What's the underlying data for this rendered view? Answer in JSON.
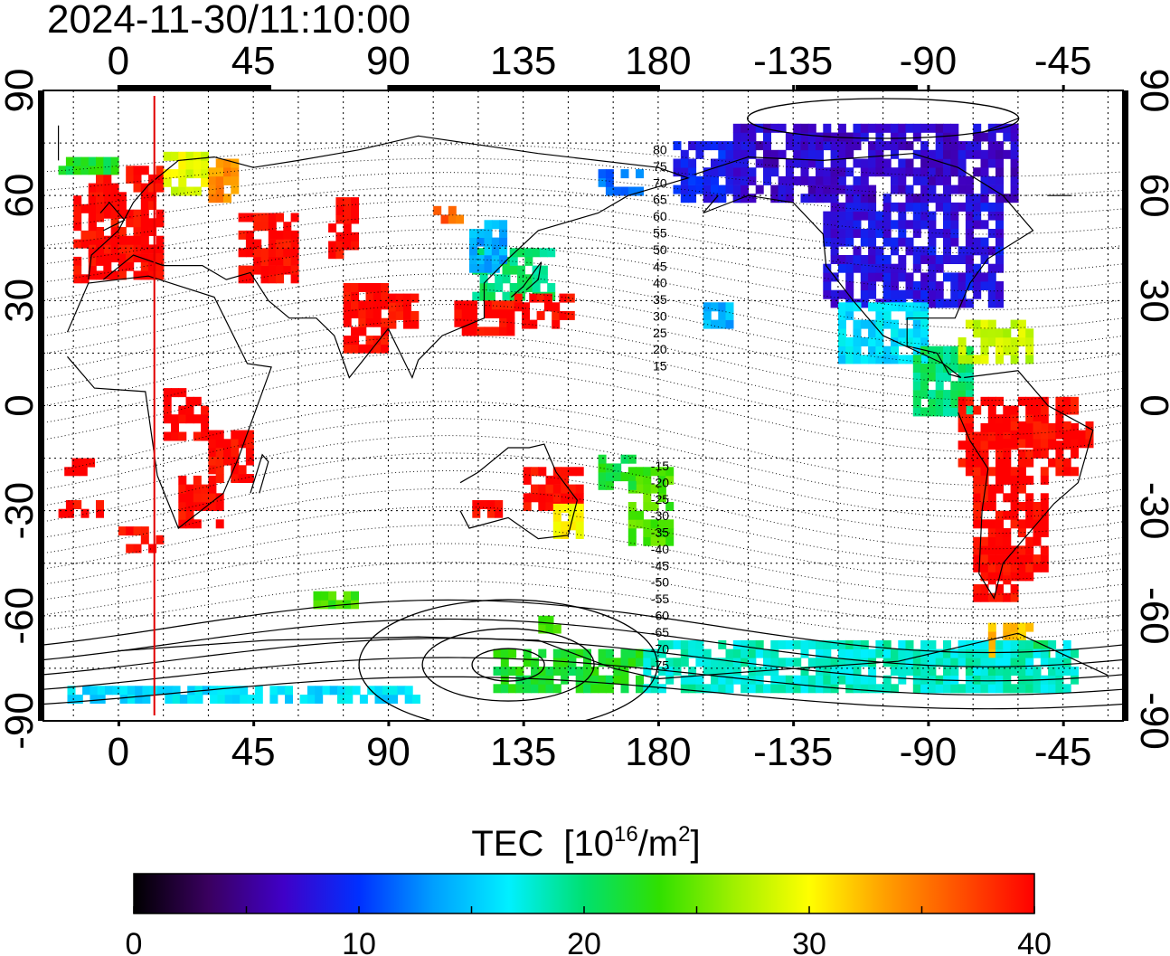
{
  "title": "2024-11-30/11:10:00",
  "map": {
    "lon_labels_top": [
      "0",
      "45",
      "90",
      "135",
      "180",
      "-135",
      "-90",
      "-45"
    ],
    "lon_labels_bottom": [
      "0",
      "45",
      "90",
      "135",
      "180",
      "-135",
      "-90",
      "-45"
    ],
    "lat_labels_left": [
      "90",
      "60",
      "30",
      "0",
      "-30",
      "-60",
      "-90"
    ],
    "lat_labels_right": [
      "90",
      "60",
      "30",
      "0",
      "-30",
      "-60",
      "-90"
    ],
    "lon_range": [
      -25,
      335
    ],
    "lat_range": [
      -90,
      90
    ],
    "terminator_lon": 12,
    "terminator_color": "#e00000",
    "contour_labels": [
      "80",
      "75",
      "70",
      "65",
      "60",
      "55",
      "50",
      "45",
      "40",
      "35",
      "30",
      "25",
      "20",
      "15",
      "-15",
      "-20",
      "-25",
      "-30",
      "-35",
      "-40",
      "-45",
      "-50",
      "-55",
      "-60",
      "-65",
      "-70",
      "-75"
    ],
    "contour_label_lats": [
      80,
      75,
      70,
      65,
      60,
      55,
      50,
      45,
      40,
      35,
      30,
      25,
      20,
      15,
      -15,
      -20,
      -25,
      -30,
      -35,
      -40,
      -45,
      -50,
      -55,
      -60,
      -65,
      -70,
      -75
    ],
    "contour_label_lon": 180
  },
  "colorbar": {
    "title_text": "TEC",
    "title_unit_a": "[10",
    "title_exp": "16",
    "title_unit_b": "/m",
    "title_sq": "2",
    "title_close": "]",
    "tick_labels": [
      "0",
      "10",
      "20",
      "30",
      "40"
    ],
    "range": [
      0,
      40
    ],
    "colormap": [
      "#000000",
      "#3a0060",
      "#4000c8",
      "#0030ff",
      "#00a0ff",
      "#00f0ff",
      "#00e070",
      "#30e000",
      "#a0f000",
      "#ffff00",
      "#ffa000",
      "#ff5000",
      "#ff0000"
    ]
  }
}
